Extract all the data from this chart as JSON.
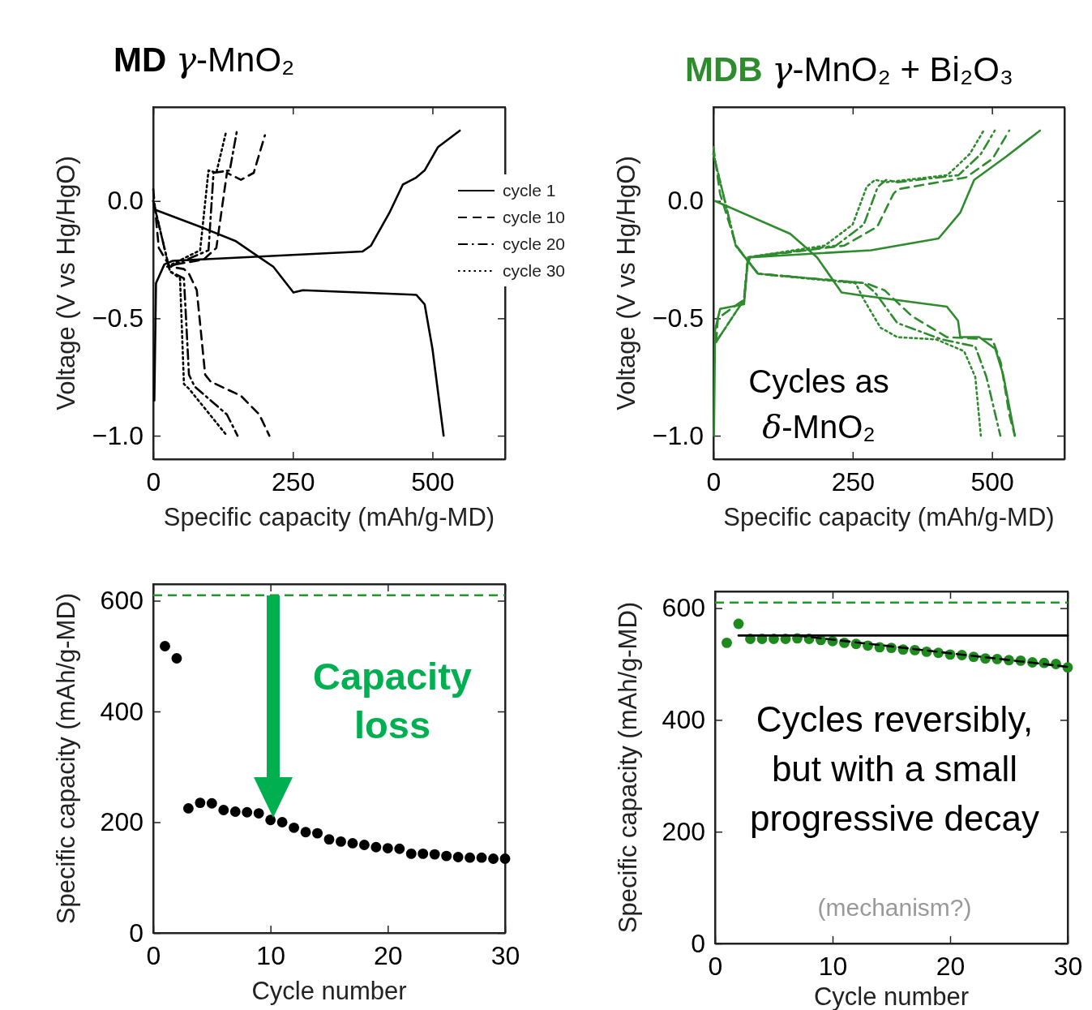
{
  "chart_data": [
    {
      "type": "line",
      "title": "MD γ-MnO₂",
      "xlabel": "Specific capacity (mAh/g-MD)",
      "ylabel": "Voltage (V vs Hg/HgO)",
      "xlim": [
        0,
        630
      ],
      "ylim": [
        -1.1,
        0.4
      ],
      "xticks": [
        0,
        250,
        500
      ],
      "yticks": [
        {
          "value": 0,
          "label": "0.0"
        },
        {
          "value": -0.5,
          "label": "−0.5"
        },
        {
          "value": -1,
          "label": "−1.0"
        }
      ],
      "legend": "right",
      "series": [
        {
          "name": "cycle 1",
          "color": "#000000",
          "line_style": "solid",
          "x": [
            6,
            84,
            147,
            190,
            215,
            251,
            268,
            471,
            486,
            500,
            520
          ],
          "values": [
            -0.04,
            -0.11,
            -0.17,
            -0.24,
            -0.28,
            -0.39,
            -0.38,
            -0.4,
            -0.44,
            -0.63,
            -1.0
          ]
        },
        {
          "name": "cycle 10",
          "color": "#000000",
          "line_style": "dashed",
          "x": [
            0,
            10,
            30,
            55,
            64,
            78,
            93,
            103,
            157,
            190,
            208
          ],
          "values": [
            0.05,
            -0.2,
            -0.28,
            -0.29,
            -0.31,
            -0.38,
            -0.74,
            -0.77,
            -0.83,
            -0.91,
            -1.0
          ]
        },
        {
          "name": "cycle 20",
          "color": "#000000",
          "line_style": "dashdot",
          "x": [
            0,
            30,
            55,
            64,
            74,
            132,
            151
          ],
          "values": [
            0.0,
            -0.3,
            -0.33,
            -0.74,
            -0.79,
            -0.91,
            -1.0
          ]
        },
        {
          "name": "cycle 30",
          "color": "#000000",
          "line_style": "dotted",
          "x": [
            0,
            30,
            48,
            55,
            64,
            132
          ],
          "values": [
            0.0,
            -0.3,
            -0.33,
            -0.78,
            -0.8,
            -1.0
          ]
        },
        {
          "color": "#000000",
          "line_style": "solid",
          "x": [
            2,
            5,
            20,
            35,
            375,
            390,
            423,
            447,
            471,
            486,
            510,
            549
          ],
          "values": [
            -0.85,
            -0.35,
            -0.27,
            -0.255,
            -0.215,
            -0.19,
            -0.05,
            0.07,
            0.1,
            0.13,
            0.23,
            0.3
          ]
        },
        {
          "color": "#000000",
          "line_style": "dashed",
          "x": [
            40,
            90,
            113,
            132,
            157,
            180,
            200
          ],
          "values": [
            -0.27,
            -0.25,
            -0.2,
            0.12,
            0.09,
            0.12,
            0.28
          ]
        },
        {
          "color": "#000000",
          "line_style": "dashdot",
          "x": [
            30,
            99,
            108,
            137,
            150
          ],
          "values": [
            -0.28,
            -0.21,
            0.12,
            0.13,
            0.3
          ]
        },
        {
          "color": "#000000",
          "line_style": "dotted",
          "x": [
            25,
            84,
            99,
            113,
            130
          ],
          "values": [
            -0.28,
            -0.21,
            0.13,
            0.12,
            0.29
          ]
        }
      ]
    },
    {
      "type": "line",
      "title": "MDB γ-MnO₂ + Bi₂O₃",
      "xlabel": "Specific capacity (mAh/g-MD)",
      "ylabel": "Voltage (V vs Hg/HgO)",
      "xlim": [
        0,
        630
      ],
      "ylim": [
        -1.1,
        0.4
      ],
      "xticks": [
        0,
        250,
        500
      ],
      "yticks": [
        {
          "value": 0,
          "label": "0.0"
        },
        {
          "value": -0.5,
          "label": "−0.5"
        },
        {
          "value": -1,
          "label": "−1.0"
        }
      ],
      "annotations": [
        "Cycles as δ-MnO₂"
      ],
      "series": [
        {
          "color": "#2e8b2e",
          "line_style": "solid",
          "x": [
            3,
            138,
            186,
            230,
            259,
            419,
            439,
            443,
            477,
            506,
            520,
            541
          ],
          "values": [
            0.0,
            -0.14,
            -0.24,
            -0.39,
            -0.4,
            -0.45,
            -0.51,
            -0.58,
            -0.58,
            -0.63,
            -0.74,
            -1.0
          ]
        },
        {
          "color": "#2e8b2e",
          "line_style": "dashed",
          "x": [
            0,
            12,
            41,
            80,
            273,
            307,
            356,
            419,
            501,
            516,
            531,
            541
          ],
          "values": [
            0.23,
            0.03,
            -0.19,
            -0.31,
            -0.35,
            -0.38,
            -0.49,
            -0.58,
            -0.59,
            -0.69,
            -0.91,
            -1.0
          ]
        },
        {
          "color": "#2e8b2e",
          "line_style": "dashdot",
          "x": [
            0,
            40,
            80,
            270,
            290,
            330,
            410,
            470,
            490,
            515
          ],
          "values": [
            0.2,
            -0.19,
            -0.31,
            -0.35,
            -0.39,
            -0.52,
            -0.59,
            -0.62,
            -0.75,
            -1.0
          ]
        },
        {
          "color": "#2e8b2e",
          "line_style": "dotted",
          "x": [
            0,
            40,
            80,
            255,
            270,
            300,
            330,
            400,
            450,
            470,
            480
          ],
          "values": [
            0.2,
            -0.19,
            -0.31,
            -0.35,
            -0.42,
            -0.54,
            -0.58,
            -0.59,
            -0.64,
            -0.75,
            -1.0
          ]
        },
        {
          "color": "#2e8b2e",
          "line_style": "solid",
          "x": [
            1,
            3,
            12,
            55,
            61,
            66,
            283,
            404,
            443,
            468,
            526,
            586
          ],
          "values": [
            -1.0,
            -0.55,
            -0.46,
            -0.44,
            -0.27,
            -0.24,
            -0.21,
            -0.16,
            -0.05,
            0.09,
            0.19,
            0.3
          ]
        },
        {
          "color": "#2e8b2e",
          "line_style": "dashed",
          "x": [
            5,
            8,
            55,
            62,
            66,
            235,
            294,
            323,
            331,
            453,
            501,
            531
          ],
          "values": [
            -0.6,
            -0.5,
            -0.42,
            -0.25,
            -0.24,
            -0.19,
            -0.11,
            0.03,
            0.05,
            0.1,
            0.18,
            0.3
          ]
        },
        {
          "color": "#2e8b2e",
          "line_style": "dashdot",
          "x": [
            5,
            55,
            62,
            220,
            270,
            295,
            310,
            330,
            440,
            480,
            505
          ],
          "values": [
            -0.6,
            -0.42,
            -0.24,
            -0.19,
            -0.1,
            0.06,
            0.09,
            0.08,
            0.11,
            0.2,
            0.3
          ]
        },
        {
          "color": "#2e8b2e",
          "line_style": "dotted",
          "x": [
            5,
            55,
            62,
            200,
            250,
            275,
            290,
            310,
            420,
            460,
            485
          ],
          "values": [
            -0.6,
            -0.42,
            -0.24,
            -0.19,
            -0.1,
            0.06,
            0.09,
            0.08,
            0.11,
            0.2,
            0.3
          ]
        }
      ]
    },
    {
      "type": "scatter",
      "xlabel": "Cycle number",
      "ylabel": "Specific capacity (mAh/g-MD)",
      "xlim": [
        0,
        30
      ],
      "ylim": [
        0,
        630
      ],
      "xticks": [
        0,
        10,
        20,
        30
      ],
      "yticks": [
        0,
        200,
        400,
        600
      ],
      "marker": "circle",
      "ref_lines": [
        {
          "axis": "y",
          "value": 610,
          "color": "#1f9a2a",
          "line_style": "dashed"
        }
      ],
      "annotations": [
        "Capacity loss"
      ],
      "series": [
        {
          "color": "#000000",
          "x": [
            1,
            2,
            3,
            4,
            5,
            6,
            7,
            8,
            9,
            10,
            11,
            12,
            13,
            14,
            15,
            16,
            17,
            18,
            19,
            20,
            21,
            22,
            23,
            24,
            25,
            26,
            27,
            28,
            29,
            30
          ],
          "values": [
            518,
            496,
            225,
            235,
            234,
            222,
            219,
            218,
            216,
            204,
            200,
            190,
            182,
            180,
            169,
            165,
            162,
            159,
            155,
            153,
            152,
            143,
            143,
            142,
            139,
            137,
            136,
            136,
            134,
            134
          ]
        }
      ]
    },
    {
      "type": "scatter",
      "xlabel": "Cycle number",
      "ylabel": "Specific capacity (mAh/g-MD)",
      "xlim": [
        0,
        30
      ],
      "ylim": [
        0,
        630
      ],
      "xticks": [
        0,
        10,
        20,
        30
      ],
      "yticks": [
        0,
        200,
        400,
        600
      ],
      "marker": "circle",
      "ref_lines": [
        {
          "axis": "y",
          "value": 610,
          "color": "#1f9a2a",
          "line_style": "dashed"
        }
      ],
      "annotations": [
        "Cycles reversibly, but with a small progressive decay",
        "(mechanism?)"
      ],
      "series": [
        {
          "color": "#1e8a1e",
          "x": [
            1,
            2,
            3,
            4,
            5,
            6,
            7,
            8,
            9,
            10,
            11,
            12,
            13,
            14,
            15,
            16,
            17,
            18,
            19,
            20,
            21,
            22,
            23,
            24,
            25,
            26,
            27,
            28,
            29,
            30
          ],
          "values": [
            538,
            572,
            545,
            545,
            545,
            545,
            546,
            545,
            543,
            541,
            538,
            536,
            533,
            530,
            529,
            526,
            525,
            522,
            520,
            517,
            516,
            513,
            510,
            509,
            507,
            506,
            503,
            502,
            500,
            494
          ]
        },
        {
          "type": "line",
          "color": "#000000",
          "line_style": "solid",
          "marker": "none",
          "x": [
            2,
            30
          ],
          "values": [
            551,
            551
          ]
        },
        {
          "type": "line",
          "color": "#000000",
          "line_style": "dashed",
          "marker": "none",
          "x": [
            7,
            30
          ],
          "values": [
            551,
            495
          ]
        }
      ]
    }
  ]
}
